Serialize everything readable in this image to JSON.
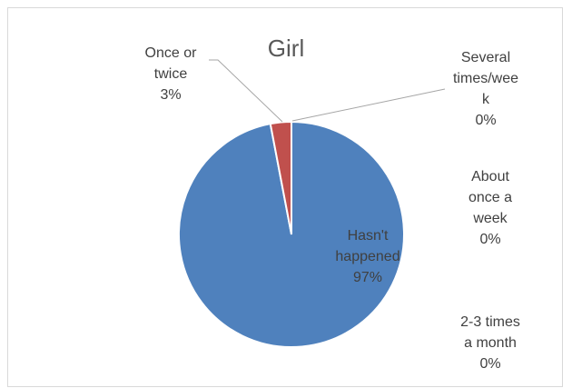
{
  "chart_data": {
    "type": "pie",
    "title": "Girl",
    "slices": [
      {
        "name": "Hasn't happened",
        "value": 97,
        "label": "Hasn't\nhappened\n97%",
        "color": "#4f81bd"
      },
      {
        "name": "Once or twice",
        "value": 3,
        "label": "Once or\ntwice\n3%",
        "color": "#c0504d"
      },
      {
        "name": "Several times/week",
        "value": 0,
        "label": "Several\ntimes/wee\nk\n0%",
        "color": "#9bbb59"
      },
      {
        "name": "About once a week",
        "value": 0,
        "label": "About\nonce a\nweek\n0%",
        "color": "#8064a2"
      },
      {
        "name": "2-3 times a month",
        "value": 0,
        "label": "2-3 times\na month\n0%",
        "color": "#4bacc6"
      }
    ]
  }
}
